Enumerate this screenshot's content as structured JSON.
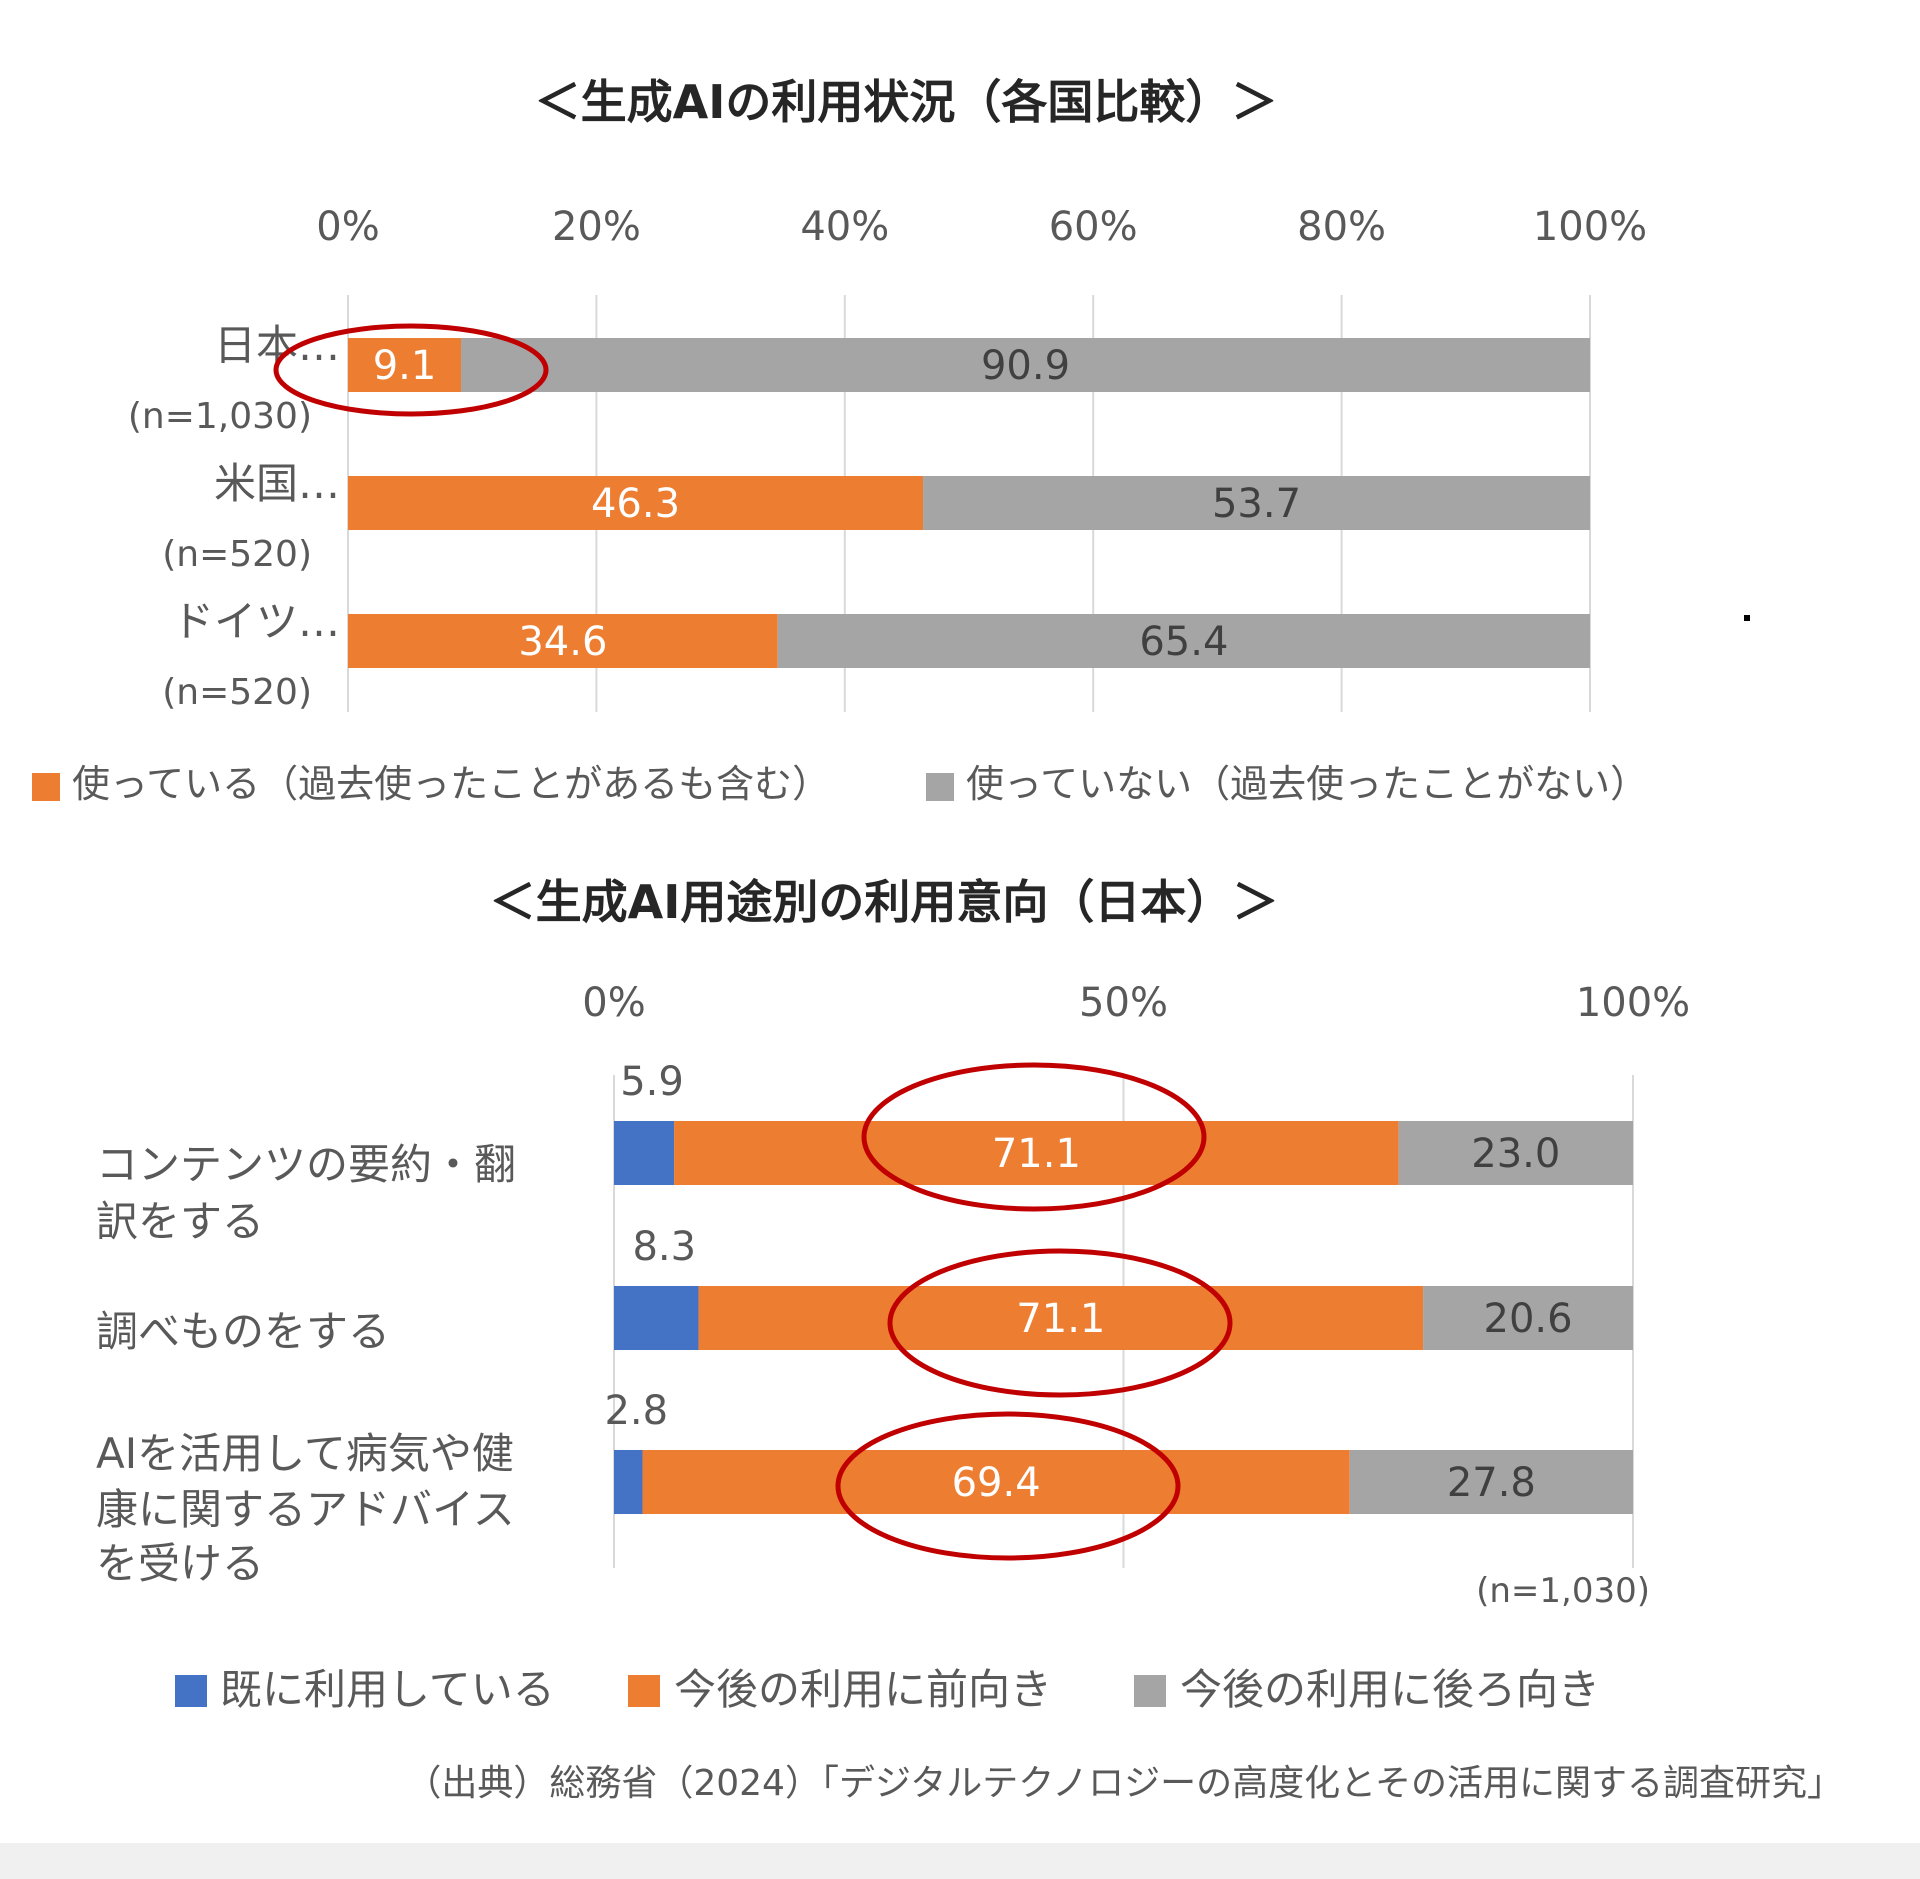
{
  "colors": {
    "blue": "#4472C4",
    "orange": "#ED7D31",
    "gray": "#A5A5A5",
    "circle": "#C00000",
    "grid": "#d9d9d9",
    "text": "#595959",
    "title": "#262626"
  },
  "chart_data": [
    {
      "type": "bar",
      "stacked": true,
      "orientation": "horizontal",
      "title": "＜生成AIの利用状況（各国比較）＞",
      "xlim": [
        0,
        100
      ],
      "ticks": [
        "0%",
        "20%",
        "40%",
        "60%",
        "80%",
        "100%"
      ],
      "categories": [
        {
          "name": "日本…",
          "n": "(n=1,030)"
        },
        {
          "name": "米国…",
          "n": "(n=520)"
        },
        {
          "name": "ドイツ…",
          "n": "(n=520)"
        }
      ],
      "series": [
        {
          "name": "使っている（過去使ったことがあるも含む）",
          "color_key": "orange",
          "values": [
            9.1,
            46.3,
            34.6
          ],
          "labels": [
            "9.1",
            "46.3",
            "34.6"
          ]
        },
        {
          "name": "使っていない（過去使ったことがない）",
          "color_key": "gray",
          "values": [
            90.9,
            53.7,
            65.4
          ],
          "labels": [
            "90.9",
            "53.7",
            "65.4"
          ]
        }
      ],
      "highlight": "9.1"
    },
    {
      "type": "bar",
      "stacked": true,
      "orientation": "horizontal",
      "title": "＜生成AI用途別の利用意向（日本）＞",
      "xlim": [
        0,
        100
      ],
      "ticks": [
        "0%",
        "50%",
        "100%"
      ],
      "categories": [
        {
          "lines": [
            "コンテンツの要約・翻",
            "訳をする"
          ]
        },
        {
          "lines": [
            "調べものをする"
          ]
        },
        {
          "lines": [
            "AIを活用して病気や健",
            "康に関するアドバイス",
            "を受ける"
          ]
        }
      ],
      "series": [
        {
          "name": "既に利用している",
          "color_key": "blue",
          "values": [
            5.9,
            8.3,
            2.8
          ],
          "labels": [
            "5.9",
            "8.3",
            "2.8"
          ]
        },
        {
          "name": "今後の利用に前向き",
          "color_key": "orange",
          "values": [
            71.1,
            71.1,
            69.4
          ],
          "labels": [
            "71.1",
            "71.1",
            "69.4"
          ]
        },
        {
          "name": "今後の利用に後ろ向き",
          "color_key": "gray",
          "values": [
            23.0,
            20.6,
            27.8
          ],
          "labels": [
            "23.0",
            "20.6",
            "27.8"
          ]
        }
      ],
      "note": "(n=1,030)",
      "highlight": [
        "71.1",
        "71.1",
        "69.4"
      ]
    }
  ],
  "source": "（出典）総務省（2024）「デジタルテクノロジーの高度化とその活用に関する調査研究」"
}
